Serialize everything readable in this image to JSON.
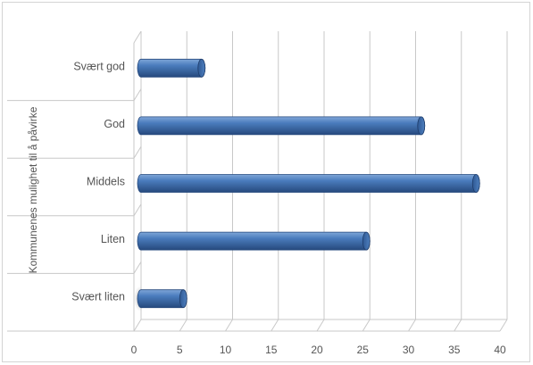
{
  "chart_data": {
    "type": "bar",
    "orientation": "horizontal",
    "style": "3d-cylinder",
    "ylabel": "Kommunenes mulighet til å påvirke",
    "xlabel": "",
    "categories": [
      "Svært god",
      "God",
      "Middels",
      "Liten",
      "Svært liten"
    ],
    "values": [
      7,
      31,
      37,
      25,
      5
    ],
    "xlim": [
      0,
      40
    ],
    "xticks": [
      "0",
      "5",
      "10",
      "15",
      "20",
      "25",
      "30",
      "35",
      "40"
    ],
    "grid": true,
    "legend": "none",
    "colors": {
      "bar": "#3f6fae",
      "bar_dark": "#26497d",
      "bar_light": "#7fa6d8",
      "grid": "#c8c8c8",
      "text": "#555555"
    }
  }
}
